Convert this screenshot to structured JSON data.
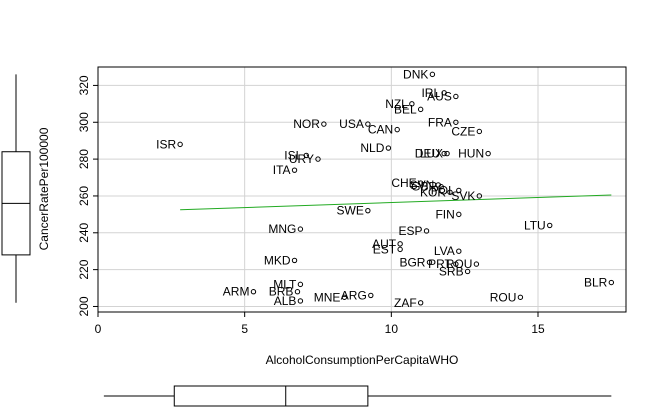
{
  "chart_data": {
    "type": "scatter",
    "title": "",
    "xlabel": "AlcoholConsumptionPerCapitaWHO",
    "ylabel": "CancerRatePer100000",
    "xlim": [
      0,
      18
    ],
    "ylim": [
      197,
      330
    ],
    "xticks": [
      0,
      5,
      10,
      15
    ],
    "yticks": [
      200,
      220,
      240,
      260,
      280,
      300,
      320
    ],
    "grid": true,
    "legend": "none",
    "point_color": "#000000",
    "trend_color": "#22aa22",
    "trend_line": {
      "x": [
        2.8,
        17.5
      ],
      "y": [
        252.5,
        260.5
      ]
    },
    "points": [
      {
        "label": "DNK",
        "x": 11.4,
        "y": 326
      },
      {
        "label": "IRL",
        "x": 11.8,
        "y": 316
      },
      {
        "label": "AUS",
        "x": 12.2,
        "y": 314
      },
      {
        "label": "NZL",
        "x": 10.7,
        "y": 310
      },
      {
        "label": "BEL",
        "x": 11.0,
        "y": 307
      },
      {
        "label": "FRA",
        "x": 12.2,
        "y": 300
      },
      {
        "label": "CZE",
        "x": 13.0,
        "y": 295
      },
      {
        "label": "NOR",
        "x": 7.7,
        "y": 299
      },
      {
        "label": "USA",
        "x": 9.2,
        "y": 299
      },
      {
        "label": "CAN",
        "x": 10.2,
        "y": 296
      },
      {
        "label": "ISR",
        "x": 2.8,
        "y": 288
      },
      {
        "label": "NLD",
        "x": 9.9,
        "y": 286
      },
      {
        "label": "LUX",
        "x": 11.9,
        "y": 283
      },
      {
        "label": "DEU",
        "x": 11.8,
        "y": 283
      },
      {
        "label": "HUN",
        "x": 13.3,
        "y": 283
      },
      {
        "label": "ISL",
        "x": 7.1,
        "y": 282
      },
      {
        "label": "URY",
        "x": 7.5,
        "y": 280
      },
      {
        "label": "ITA",
        "x": 6.7,
        "y": 274
      },
      {
        "label": "CHE",
        "x": 11.0,
        "y": 267
      },
      {
        "label": "SVN",
        "x": 11.6,
        "y": 266
      },
      {
        "label": "GBR",
        "x": 11.7,
        "y": 265
      },
      {
        "label": "KOR",
        "x": 12.0,
        "y": 262
      },
      {
        "label": "POL",
        "x": 12.3,
        "y": 263
      },
      {
        "label": "SVK",
        "x": 13.0,
        "y": 260
      },
      {
        "label": "SWE",
        "x": 9.2,
        "y": 252
      },
      {
        "label": "FIN",
        "x": 12.3,
        "y": 250
      },
      {
        "label": "LTU",
        "x": 15.4,
        "y": 244
      },
      {
        "label": "MNG",
        "x": 6.9,
        "y": 242
      },
      {
        "label": "ESP",
        "x": 11.2,
        "y": 241
      },
      {
        "label": "AUT",
        "x": 10.3,
        "y": 234
      },
      {
        "label": "EST",
        "x": 10.3,
        "y": 231
      },
      {
        "label": "LVA",
        "x": 12.3,
        "y": 230
      },
      {
        "label": "MKD",
        "x": 6.7,
        "y": 225
      },
      {
        "label": "BGR",
        "x": 11.3,
        "y": 224
      },
      {
        "label": "PRT",
        "x": 12.2,
        "y": 223
      },
      {
        "label": "ROU",
        "x": 12.9,
        "y": 223
      },
      {
        "label": "SRB",
        "x": 12.6,
        "y": 219
      },
      {
        "label": "BLR",
        "x": 17.5,
        "y": 213
      },
      {
        "label": "MLT",
        "x": 6.9,
        "y": 212
      },
      {
        "label": "ARM",
        "x": 5.3,
        "y": 208
      },
      {
        "label": "BRB",
        "x": 6.8,
        "y": 208
      },
      {
        "label": "ARG",
        "x": 9.3,
        "y": 206
      },
      {
        "label": "MNE",
        "x": 8.4,
        "y": 205
      },
      {
        "label": "ROU",
        "x": 14.4,
        "y": 205
      },
      {
        "label": "ALB",
        "x": 6.9,
        "y": 203
      },
      {
        "label": "ZAF",
        "x": 11.0,
        "y": 202
      }
    ],
    "x_boxplot": {
      "min": 0.2,
      "q1": 2.6,
      "median": 6.4,
      "q3": 9.2,
      "max": 17.5
    },
    "y_boxplot": {
      "min": 202,
      "q1": 228,
      "median": 256,
      "q3": 284,
      "max": 326
    }
  }
}
